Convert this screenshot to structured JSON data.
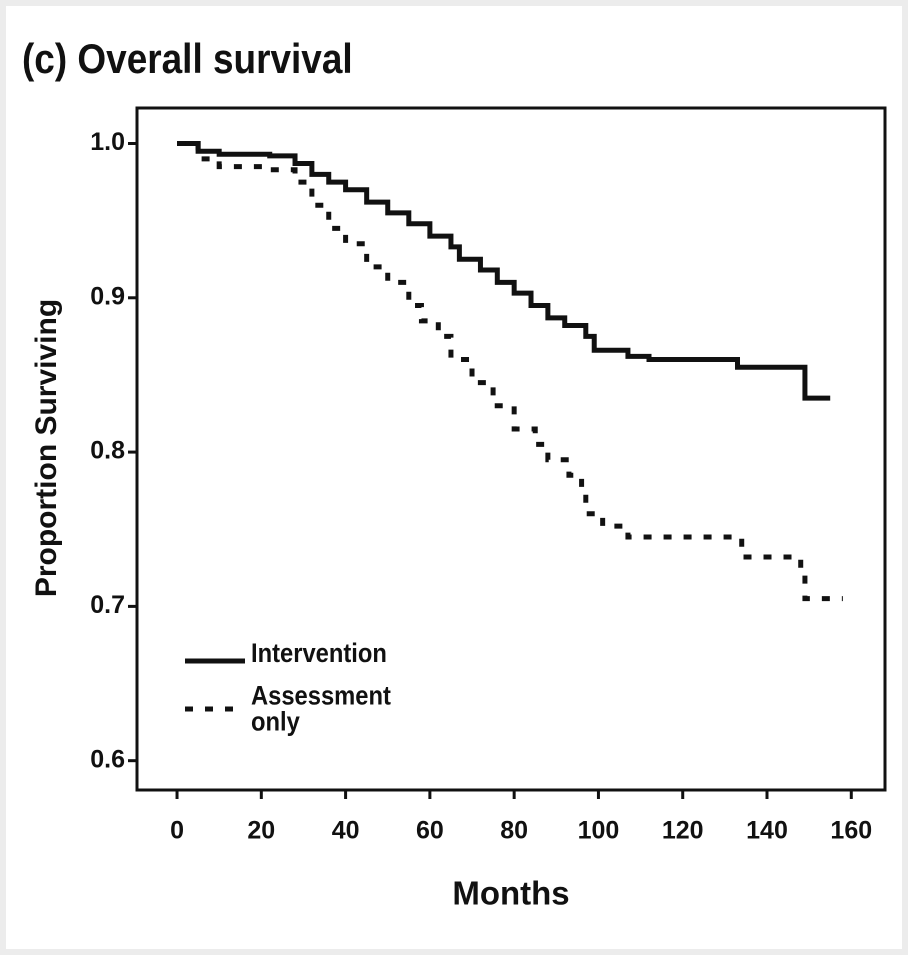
{
  "chart_data": {
    "type": "step",
    "title": "(c) Overall survival",
    "x_label": "Months",
    "y_label": "Proportion Surviving",
    "xlim": [
      -9.5,
      168
    ],
    "ylim": [
      0.581,
      1.023
    ],
    "xticks": [
      0,
      20,
      40,
      60,
      80,
      100,
      120,
      140,
      160
    ],
    "yticks": [
      0.6,
      0.7,
      0.8,
      0.9,
      {
        "value": 1,
        "label": "1.0"
      }
    ],
    "grid": false,
    "legend": "lower left",
    "series": [
      {
        "name": "Intervention",
        "color": "#111111",
        "dashed": false,
        "x": [
          0,
          5,
          10,
          22,
          28,
          32,
          36,
          40,
          45,
          50,
          55,
          60,
          65,
          67,
          72,
          76,
          80,
          84,
          88,
          92,
          97,
          99,
          107,
          112,
          133,
          149,
          155
        ],
        "values": [
          1.0,
          0.995,
          0.993,
          0.992,
          0.987,
          0.98,
          0.975,
          0.97,
          0.962,
          0.955,
          0.948,
          0.94,
          0.933,
          0.925,
          0.918,
          0.91,
          0.903,
          0.895,
          0.887,
          0.882,
          0.875,
          0.866,
          0.862,
          0.86,
          0.855,
          0.835,
          0.835
        ]
      },
      {
        "name": "Assessment only",
        "color": "#111111",
        "dashed": true,
        "x": [
          0,
          5,
          10,
          22,
          28,
          32,
          36,
          40,
          45,
          50,
          55,
          58,
          62,
          65,
          70,
          75,
          80,
          85,
          88,
          93,
          96,
          97,
          101,
          107,
          134,
          148,
          149,
          158
        ],
        "values": [
          1.0,
          0.99,
          0.985,
          0.983,
          0.975,
          0.96,
          0.945,
          0.935,
          0.92,
          0.91,
          0.895,
          0.885,
          0.875,
          0.86,
          0.845,
          0.83,
          0.815,
          0.805,
          0.795,
          0.785,
          0.775,
          0.76,
          0.752,
          0.745,
          0.732,
          0.72,
          0.705,
          0.705
        ]
      }
    ]
  }
}
